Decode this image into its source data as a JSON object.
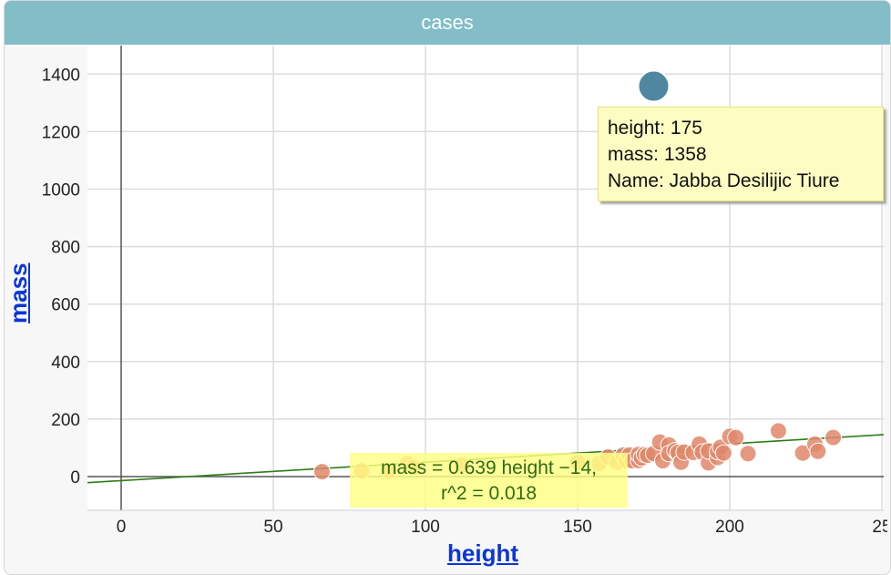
{
  "window": {
    "title": "cases"
  },
  "axes": {
    "x_label": "height",
    "y_label": "mass"
  },
  "tooltip": {
    "line1": "height: 175",
    "line2": "mass: 1358",
    "line3": "Name: Jabba Desilijic Tiure"
  },
  "regression": {
    "equation": "mass = 0.639 height −14,",
    "r2": "r^2 = 0.018"
  },
  "colors": {
    "point": "#e0876a",
    "highlight": "#4f87a0",
    "title_bar": "#82bdc8",
    "line": "#2e7d18",
    "axis_label": "#0b35d8"
  },
  "chart_data": {
    "type": "scatter",
    "title": "cases",
    "xlabel": "height",
    "ylabel": "mass",
    "xlim": [
      -10,
      250
    ],
    "ylim": [
      -100,
      1500
    ],
    "x_ticks": [
      "0",
      "50",
      "100",
      "150",
      "200",
      "25"
    ],
    "y_ticks": [
      "0",
      "200",
      "400",
      "600",
      "800",
      "1000",
      "1200",
      "1400"
    ],
    "grid": true,
    "regression": {
      "slope": 0.639,
      "intercept": -14,
      "r2": 0.018
    },
    "highlighted_point": {
      "height": 175,
      "mass": 1358,
      "name": "Jabba Desilijic Tiure"
    },
    "points": [
      {
        "x": 66,
        "y": 17
      },
      {
        "x": 79,
        "y": 20
      },
      {
        "x": 88,
        "y": 20
      },
      {
        "x": 94,
        "y": 45
      },
      {
        "x": 96,
        "y": 32
      },
      {
        "x": 112,
        "y": 40
      },
      {
        "x": 150,
        "y": 49
      },
      {
        "x": 157,
        "y": 45
      },
      {
        "x": 160,
        "y": 68
      },
      {
        "x": 163,
        "y": 50
      },
      {
        "x": 165,
        "y": 75
      },
      {
        "x": 166,
        "y": 56
      },
      {
        "x": 167,
        "y": 75
      },
      {
        "x": 168,
        "y": 55
      },
      {
        "x": 170,
        "y": 56
      },
      {
        "x": 170,
        "y": 77
      },
      {
        "x": 171,
        "y": 65
      },
      {
        "x": 172,
        "y": 77
      },
      {
        "x": 173,
        "y": 74
      },
      {
        "x": 175,
        "y": 80
      },
      {
        "x": 177,
        "y": 120
      },
      {
        "x": 178,
        "y": 55
      },
      {
        "x": 180,
        "y": 110
      },
      {
        "x": 180,
        "y": 80
      },
      {
        "x": 182,
        "y": 90
      },
      {
        "x": 183,
        "y": 78
      },
      {
        "x": 183,
        "y": 84
      },
      {
        "x": 184,
        "y": 50
      },
      {
        "x": 185,
        "y": 85
      },
      {
        "x": 188,
        "y": 84
      },
      {
        "x": 190,
        "y": 113
      },
      {
        "x": 191,
        "y": 85
      },
      {
        "x": 193,
        "y": 48
      },
      {
        "x": 193,
        "y": 89
      },
      {
        "x": 196,
        "y": 66
      },
      {
        "x": 196,
        "y": 87
      },
      {
        "x": 197,
        "y": 102
      },
      {
        "x": 198,
        "y": 82
      },
      {
        "x": 200,
        "y": 140
      },
      {
        "x": 202,
        "y": 136
      },
      {
        "x": 206,
        "y": 80
      },
      {
        "x": 216,
        "y": 159
      },
      {
        "x": 224,
        "y": 82
      },
      {
        "x": 228,
        "y": 113
      },
      {
        "x": 229,
        "y": 88
      },
      {
        "x": 234,
        "y": 136
      }
    ]
  }
}
